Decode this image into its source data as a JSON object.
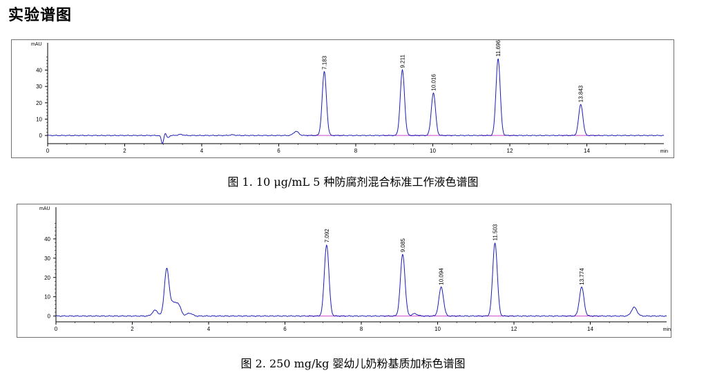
{
  "heading": "实验谱图",
  "captions": [
    "图 1. 10 μg/mL 5 种防腐剂混合标准工作液色谱图",
    "图 2. 250 mg/kg 婴幼儿奶粉基质加标色谱图"
  ],
  "chart_data": [
    {
      "type": "line",
      "title": "",
      "xlabel": "min",
      "ylabel": "mAU",
      "xlim": [
        0,
        16
      ],
      "ylim": [
        -5,
        55
      ],
      "x_ticks": [
        "0",
        "2",
        "4",
        "6",
        "8",
        "10",
        "12",
        "14"
      ],
      "y_ticks": [
        "0",
        "10",
        "20",
        "30",
        "40"
      ],
      "line_color": "#1c1cb4",
      "baseline_color": "#cc44cc",
      "peak_labels": [
        "7.183",
        "9.211",
        "10.016",
        "11.696",
        "13.843"
      ],
      "peaks": [
        {
          "rt": 7.183,
          "height": 39
        },
        {
          "rt": 9.211,
          "height": 40
        },
        {
          "rt": 10.016,
          "height": 26
        },
        {
          "rt": 11.696,
          "height": 47
        },
        {
          "rt": 13.843,
          "height": 19
        },
        {
          "rt": 6.45,
          "height": 2.5
        },
        {
          "rt": 3.45,
          "height": 0.6
        },
        {
          "rt": 4.8,
          "height": 0.4
        }
      ],
      "disturbances": [
        {
          "x": 2.98,
          "y": -5
        },
        {
          "x": 3.05,
          "y": 1.5
        },
        {
          "x": 3.12,
          "y": -1.5
        }
      ]
    },
    {
      "type": "line",
      "title": "",
      "xlabel": "min",
      "ylabel": "mAU",
      "xlim": [
        0,
        16
      ],
      "ylim": [
        -3,
        55
      ],
      "x_ticks": [
        "0",
        "2",
        "4",
        "6",
        "8",
        "10",
        "12",
        "14"
      ],
      "y_ticks": [
        "0",
        "10",
        "20",
        "30",
        "40"
      ],
      "line_color": "#1c1cb4",
      "baseline_color": "#cc44cc",
      "peak_labels": [
        "7.092",
        "9.085",
        "10.094",
        "11.503",
        "13.774"
      ],
      "peaks": [
        {
          "rt": 7.092,
          "height": 37
        },
        {
          "rt": 9.085,
          "height": 32
        },
        {
          "rt": 10.094,
          "height": 15
        },
        {
          "rt": 11.503,
          "height": 38
        },
        {
          "rt": 13.774,
          "height": 15
        },
        {
          "rt": 2.9,
          "height": 24
        },
        {
          "rt": 2.6,
          "height": 3
        },
        {
          "rt": 3.05,
          "height": 6
        },
        {
          "rt": 3.2,
          "height": 6
        },
        {
          "rt": 3.5,
          "height": 1.5
        },
        {
          "rt": 15.15,
          "height": 4.5
        },
        {
          "rt": 9.4,
          "height": 1.2
        }
      ]
    }
  ]
}
